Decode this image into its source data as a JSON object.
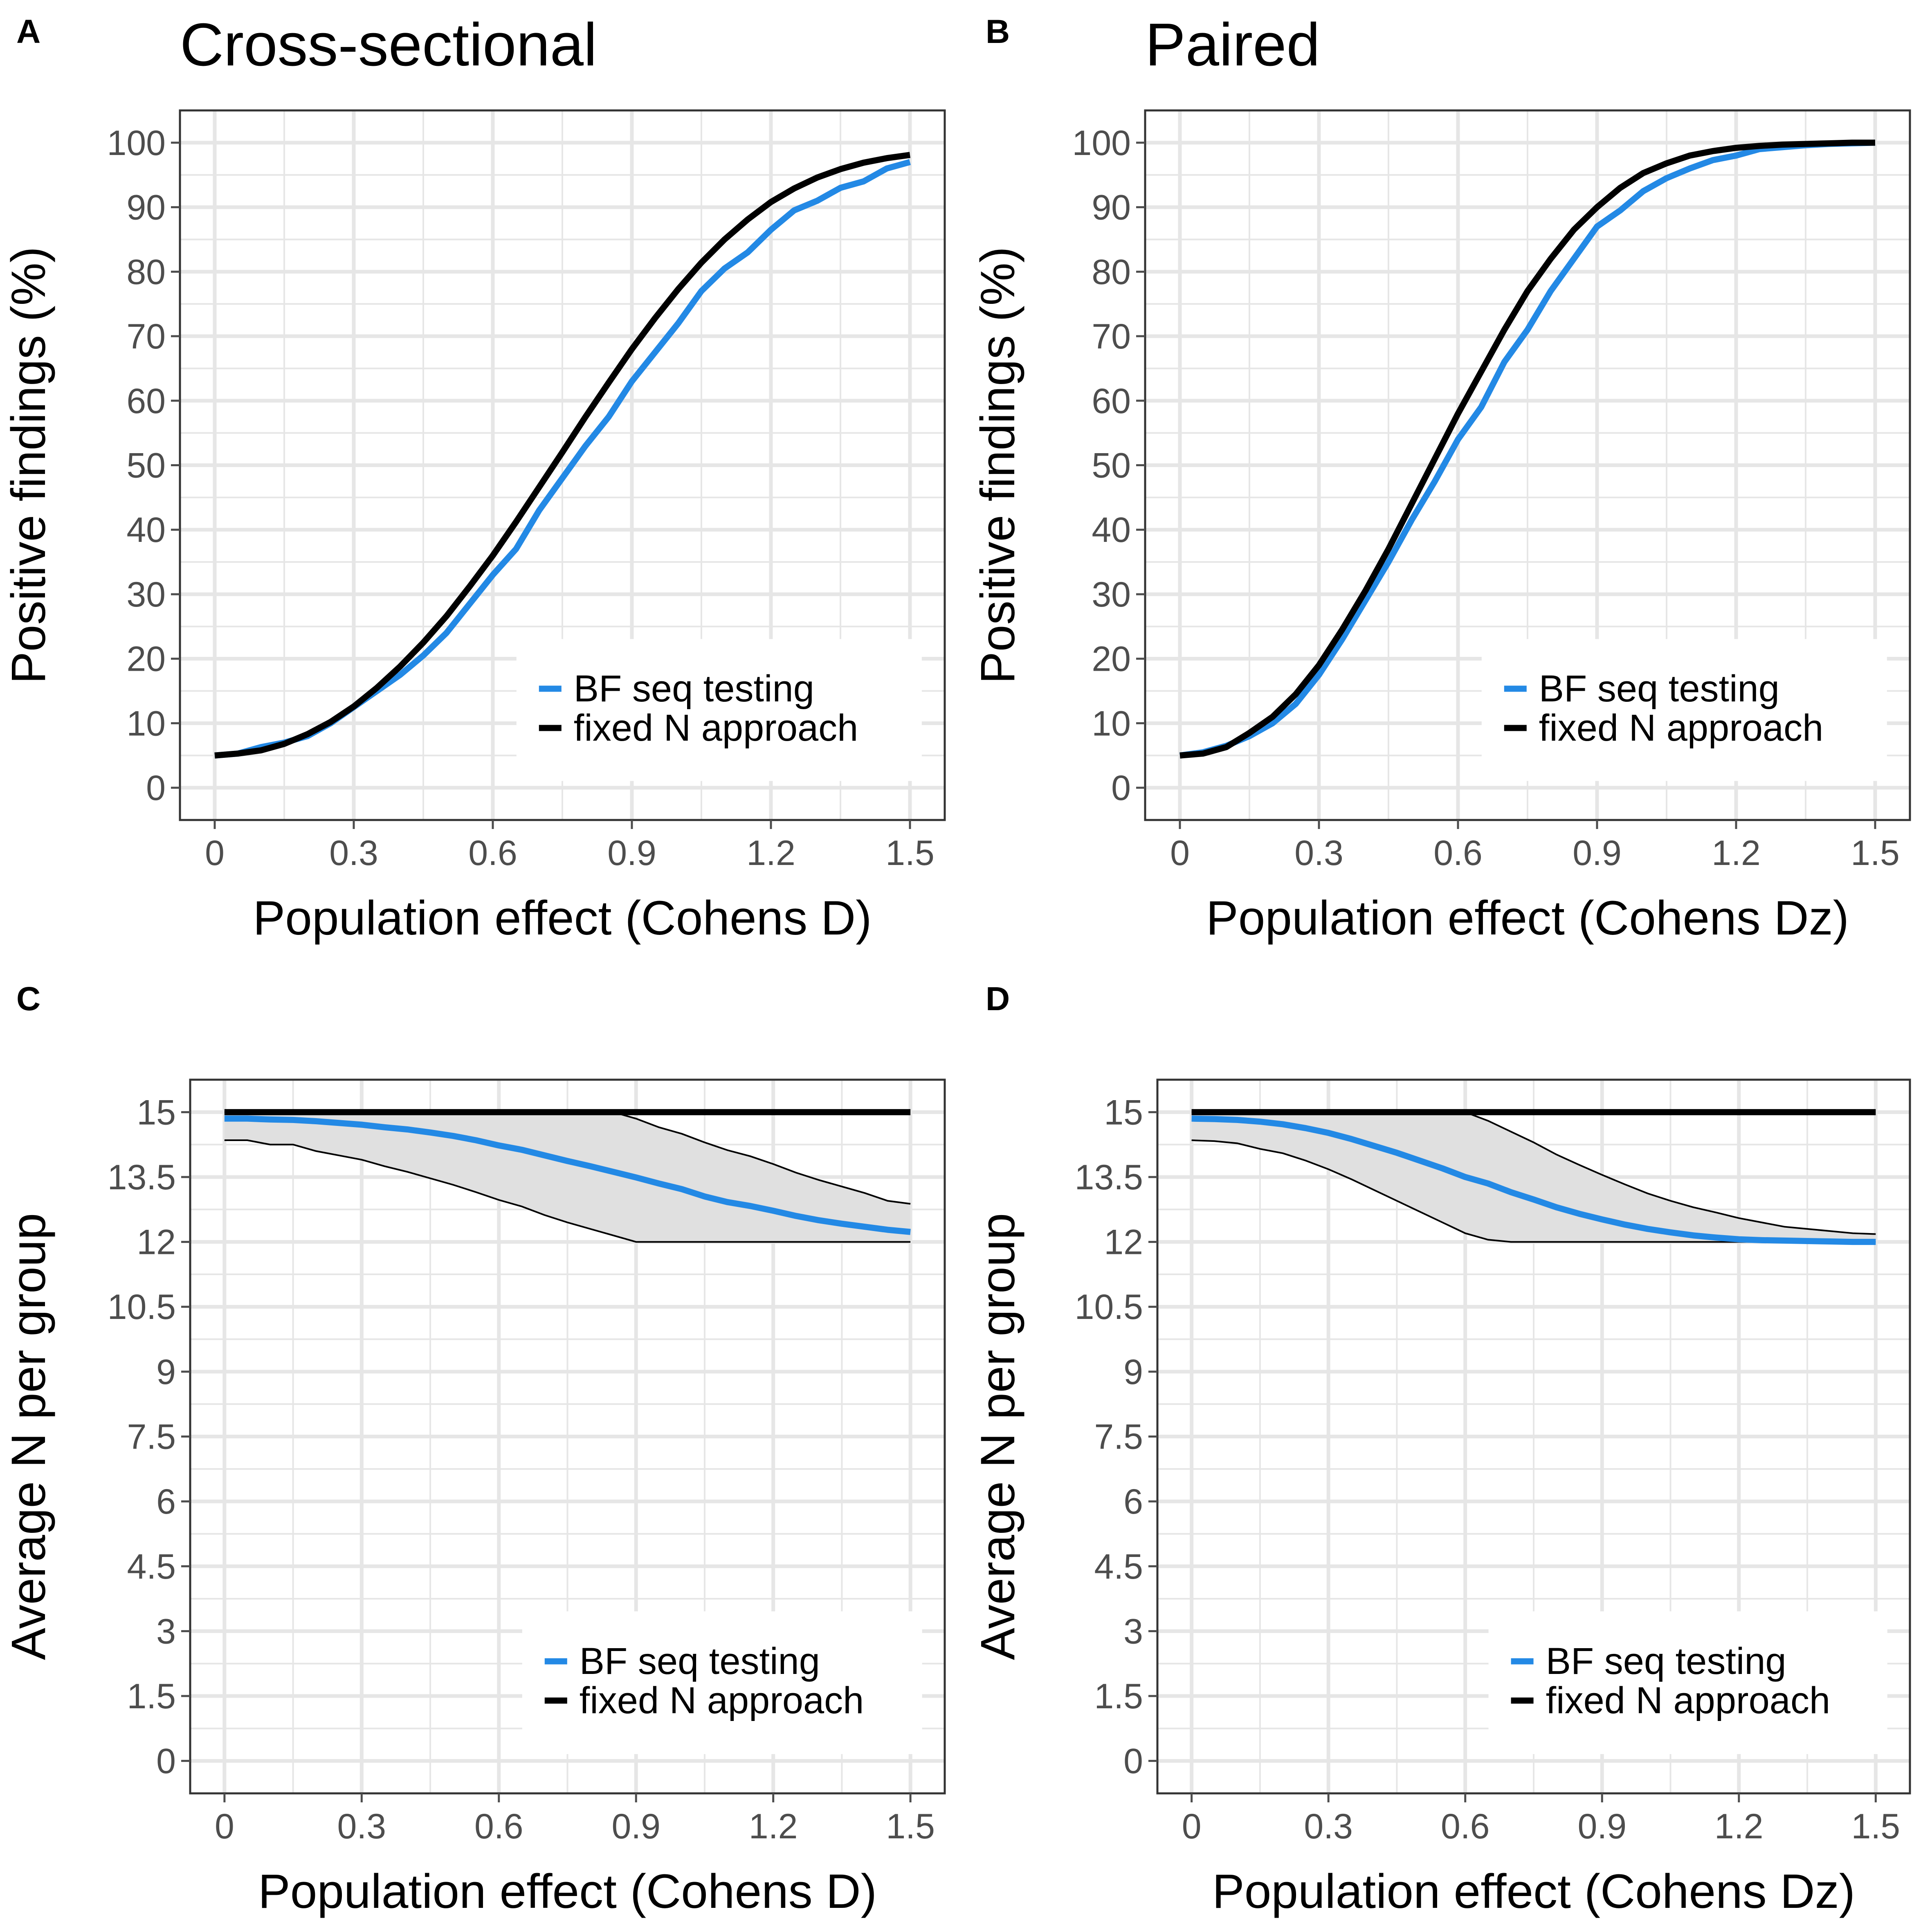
{
  "figure": {
    "colors": {
      "bf": "#2389E5",
      "fixed": "#000000",
      "ribbon": "#E0E0E0",
      "grid": "#E6E6E6",
      "tick": "#4D4D4D"
    }
  },
  "chart_data": [
    {
      "panel": "A",
      "title": "Cross-sectional",
      "type": "line",
      "xlabel": "Population effect (Cohens D)",
      "ylabel": "Positive findings (%)",
      "xlim": [
        0,
        1.5
      ],
      "ylim": [
        0,
        100
      ],
      "x_ticks": [
        "0",
        "0.3",
        "0.6",
        "0.9",
        "1.2",
        "1.5"
      ],
      "y_ticks": [
        "0",
        "10",
        "20",
        "30",
        "40",
        "50",
        "60",
        "70",
        "80",
        "90",
        "100"
      ],
      "legend": {
        "position": "bottom-right",
        "entries": [
          "BF seq testing",
          "fixed N approach"
        ]
      },
      "x": [
        0,
        0.05,
        0.1,
        0.15,
        0.2,
        0.25,
        0.3,
        0.35,
        0.4,
        0.45,
        0.5,
        0.55,
        0.6,
        0.65,
        0.7,
        0.75,
        0.8,
        0.85,
        0.9,
        0.95,
        1.0,
        1.05,
        1.1,
        1.15,
        1.2,
        1.25,
        1.3,
        1.35,
        1.4,
        1.45,
        1.5
      ],
      "series": [
        {
          "name": "BF seq testing",
          "values": [
            5,
            5.3,
            6.3,
            7,
            8,
            10,
            12.5,
            15,
            17.5,
            20.5,
            24,
            28.5,
            33,
            37,
            43,
            48,
            53,
            57.5,
            63,
            67.5,
            72,
            77,
            80.5,
            83,
            86.5,
            89.5,
            91,
            93,
            94,
            96,
            97
          ]
        },
        {
          "name": "fixed N approach",
          "values": [
            5,
            5.3,
            5.8,
            6.8,
            8.3,
            10.2,
            12.6,
            15.5,
            18.8,
            22.5,
            26.6,
            31.2,
            36,
            41.2,
            46.6,
            52,
            57.5,
            62.8,
            68,
            72.8,
            77.3,
            81.4,
            85,
            88.1,
            90.8,
            92.9,
            94.6,
            95.9,
            96.9,
            97.6,
            98.1
          ]
        }
      ]
    },
    {
      "panel": "B",
      "title": "Paired",
      "type": "line",
      "xlabel": "Population effect (Cohens Dz)",
      "ylabel": "Positive findings (%)",
      "xlim": [
        0,
        1.5
      ],
      "ylim": [
        0,
        100
      ],
      "x_ticks": [
        "0",
        "0.3",
        "0.6",
        "0.9",
        "1.2",
        "1.5"
      ],
      "y_ticks": [
        "0",
        "10",
        "20",
        "30",
        "40",
        "50",
        "60",
        "70",
        "80",
        "90",
        "100"
      ],
      "legend": {
        "position": "bottom-right",
        "entries": [
          "BF seq testing",
          "fixed N approach"
        ]
      },
      "x": [
        0,
        0.05,
        0.1,
        0.15,
        0.2,
        0.25,
        0.3,
        0.35,
        0.4,
        0.45,
        0.5,
        0.55,
        0.6,
        0.65,
        0.7,
        0.75,
        0.8,
        0.85,
        0.9,
        0.95,
        1.0,
        1.05,
        1.1,
        1.15,
        1.2,
        1.25,
        1.3,
        1.35,
        1.4,
        1.45,
        1.5
      ],
      "series": [
        {
          "name": "BF seq testing",
          "values": [
            5,
            5.5,
            6.5,
            8,
            10,
            13,
            17.5,
            23,
            29,
            35,
            41.5,
            47.5,
            54,
            59,
            66,
            71,
            77,
            82,
            87,
            89.5,
            92.5,
            94.5,
            96,
            97.3,
            98,
            99,
            99.3,
            99.6,
            99.8,
            99.9,
            100
          ]
        },
        {
          "name": "fixed N approach",
          "values": [
            5,
            5.3,
            6.3,
            8.5,
            11,
            14.5,
            19,
            24.5,
            30.5,
            37,
            44,
            51,
            58,
            64.5,
            71,
            77,
            82,
            86.5,
            90,
            93,
            95.3,
            96.8,
            98,
            98.7,
            99.2,
            99.5,
            99.7,
            99.8,
            99.9,
            100,
            100
          ]
        }
      ]
    },
    {
      "panel": "C",
      "title": "",
      "type": "line",
      "xlabel": "Population effect (Cohens D)",
      "ylabel": "Average N per group",
      "xlim": [
        0,
        1.5
      ],
      "ylim": [
        0,
        15
      ],
      "x_ticks": [
        "0",
        "0.3",
        "0.6",
        "0.9",
        "1.2",
        "1.5"
      ],
      "y_ticks": [
        "0",
        "1.5",
        "3",
        "4.5",
        "6",
        "7.5",
        "9",
        "10.5",
        "12",
        "13.5",
        "15"
      ],
      "legend": {
        "position": "bottom-right",
        "entries": [
          "BF seq testing",
          "fixed N approach"
        ]
      },
      "x": [
        0,
        0.05,
        0.1,
        0.15,
        0.2,
        0.25,
        0.3,
        0.35,
        0.4,
        0.45,
        0.5,
        0.55,
        0.6,
        0.65,
        0.7,
        0.75,
        0.8,
        0.85,
        0.9,
        0.95,
        1.0,
        1.05,
        1.1,
        1.15,
        1.2,
        1.25,
        1.3,
        1.35,
        1.4,
        1.45,
        1.5
      ],
      "series": [
        {
          "name": "BF seq testing",
          "values": [
            14.85,
            14.85,
            14.83,
            14.82,
            14.79,
            14.75,
            14.71,
            14.65,
            14.6,
            14.53,
            14.45,
            14.35,
            14.23,
            14.13,
            14.0,
            13.87,
            13.75,
            13.62,
            13.49,
            13.35,
            13.22,
            13.05,
            12.92,
            12.83,
            12.72,
            12.6,
            12.5,
            12.42,
            12.35,
            12.28,
            12.23
          ]
        },
        {
          "name": "fixed N approach",
          "values": [
            15,
            15,
            15,
            15,
            15,
            15,
            15,
            15,
            15,
            15,
            15,
            15,
            15,
            15,
            15,
            15,
            15,
            15,
            15,
            15,
            15,
            15,
            15,
            15,
            15,
            15,
            15,
            15,
            15,
            15,
            15
          ]
        }
      ],
      "ribbon": {
        "lower": [
          14.35,
          14.35,
          14.25,
          14.25,
          14.1,
          14.0,
          13.9,
          13.75,
          13.62,
          13.47,
          13.32,
          13.15,
          12.97,
          12.82,
          12.62,
          12.45,
          12.3,
          12.15,
          12.0,
          12.0,
          12.0,
          12.0,
          12.0,
          12.0,
          12.0,
          12.0,
          12.0,
          12.0,
          12.0,
          12.0,
          12.0
        ],
        "upper": [
          15,
          15,
          15,
          15,
          15,
          15,
          15,
          15,
          15,
          15,
          15,
          15,
          15,
          15,
          15,
          15,
          15,
          15,
          14.85,
          14.65,
          14.5,
          14.3,
          14.12,
          13.98,
          13.8,
          13.6,
          13.43,
          13.28,
          13.13,
          12.95,
          12.88
        ]
      }
    },
    {
      "panel": "D",
      "title": "",
      "type": "line",
      "xlabel": "Population effect (Cohens Dz)",
      "ylabel": "Average N per group",
      "xlim": [
        0,
        1.5
      ],
      "ylim": [
        0,
        15
      ],
      "x_ticks": [
        "0",
        "0.3",
        "0.6",
        "0.9",
        "1.2",
        "1.5"
      ],
      "y_ticks": [
        "0",
        "1.5",
        "3",
        "4.5",
        "6",
        "7.5",
        "9",
        "10.5",
        "12",
        "13.5",
        "15"
      ],
      "legend": {
        "position": "bottom-right",
        "entries": [
          "BF seq testing",
          "fixed N approach"
        ]
      },
      "x": [
        0,
        0.05,
        0.1,
        0.15,
        0.2,
        0.25,
        0.3,
        0.35,
        0.4,
        0.45,
        0.5,
        0.55,
        0.6,
        0.65,
        0.7,
        0.75,
        0.8,
        0.85,
        0.9,
        0.95,
        1.0,
        1.05,
        1.1,
        1.15,
        1.2,
        1.25,
        1.3,
        1.35,
        1.4,
        1.45,
        1.5
      ],
      "series": [
        {
          "name": "BF seq testing",
          "values": [
            14.85,
            14.84,
            14.82,
            14.78,
            14.72,
            14.63,
            14.52,
            14.38,
            14.22,
            14.06,
            13.88,
            13.7,
            13.5,
            13.35,
            13.15,
            12.98,
            12.8,
            12.65,
            12.52,
            12.4,
            12.3,
            12.22,
            12.15,
            12.1,
            12.06,
            12.04,
            12.03,
            12.02,
            12.01,
            12.0,
            12.0
          ]
        },
        {
          "name": "fixed N approach",
          "values": [
            15,
            15,
            15,
            15,
            15,
            15,
            15,
            15,
            15,
            15,
            15,
            15,
            15,
            15,
            15,
            15,
            15,
            15,
            15,
            15,
            15,
            15,
            15,
            15,
            15,
            15,
            15,
            15,
            15,
            15,
            15
          ]
        }
      ],
      "ribbon": {
        "lower": [
          14.35,
          14.33,
          14.28,
          14.15,
          14.05,
          13.88,
          13.68,
          13.45,
          13.2,
          12.95,
          12.7,
          12.45,
          12.2,
          12.05,
          12.0,
          12.0,
          12.0,
          12.0,
          12.0,
          12.0,
          12.0,
          12.0,
          12.0,
          12.0,
          12.0,
          12.0,
          12.0,
          12.0,
          12.0,
          12.0,
          12.0
        ],
        "upper": [
          15,
          15,
          15,
          15,
          15,
          15,
          15,
          15,
          15,
          15,
          15,
          15,
          15,
          14.8,
          14.55,
          14.3,
          14.02,
          13.78,
          13.55,
          13.33,
          13.12,
          12.95,
          12.8,
          12.68,
          12.55,
          12.45,
          12.35,
          12.3,
          12.25,
          12.2,
          12.18
        ]
      }
    }
  ]
}
